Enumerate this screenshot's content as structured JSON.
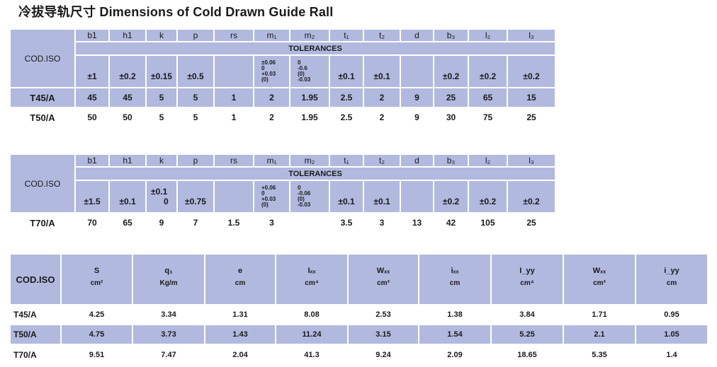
{
  "title": "冷拔导轨尺寸 Dimensions of Cold Drawn Guide Rall",
  "cod_label": "COD.ISO",
  "tolerances_label": "TOLERANCES",
  "columns": [
    "b1",
    "h1",
    "k",
    "p",
    "rs",
    "m₁",
    "m₂",
    "t₁",
    "t₂",
    "d",
    "b₃",
    "l₂",
    "l₃"
  ],
  "table1": {
    "tolerances": [
      "±1",
      "±0.2",
      "±0.15",
      "±0.5",
      "",
      [
        "±0.06",
        "0",
        "+0.03",
        "(0)"
      ],
      [
        "0",
        "-0.6",
        "(0)",
        "-0.03"
      ],
      "±0.1",
      "±0.1",
      "",
      "±0.2",
      "±0.2",
      "±0.2"
    ],
    "rows": [
      {
        "code": "T45/A",
        "values": [
          "45",
          "45",
          "5",
          "5",
          "1",
          "2",
          "1.95",
          "2.5",
          "2",
          "9",
          "25",
          "65",
          "15"
        ]
      },
      {
        "code": "T50/A",
        "values": [
          "50",
          "50",
          "5",
          "5",
          "1",
          "2",
          "1.95",
          "2.5",
          "2",
          "9",
          "30",
          "75",
          "25"
        ]
      }
    ]
  },
  "table2": {
    "tolerances": [
      "±1.5",
      "±0.1",
      [
        "±0.1",
        "0"
      ],
      "±0.75",
      "",
      [
        "+0.06",
        "0",
        "+0.03",
        "(0)"
      ],
      [
        "0",
        "-0.06",
        "(0)",
        "-0.03"
      ],
      "±0.1",
      "±0.1",
      "",
      "±0.2",
      "±0.2",
      "±0.2"
    ],
    "rows": [
      {
        "code": "T70/A",
        "values": [
          "70",
          "65",
          "9",
          "7",
          "1.5",
          "3",
          "",
          "3.5",
          "3",
          "13",
          "42",
          "105",
          "25"
        ]
      }
    ]
  },
  "table3": {
    "headers": [
      {
        "sym": "S",
        "unit": "cm²"
      },
      {
        "sym": "q₁",
        "unit": "Kg/m"
      },
      {
        "sym": "e",
        "unit": "cm"
      },
      {
        "sym": "Iₓₓ",
        "unit": "cm⁴"
      },
      {
        "sym": "Wₓₓ",
        "unit": "cm³"
      },
      {
        "sym": "iₓₓ",
        "unit": "cm"
      },
      {
        "sym": "I_yy",
        "unit": "cm⁴"
      },
      {
        "sym": "Wₓₓ",
        "unit": "cm³"
      },
      {
        "sym": "i_yy",
        "unit": "cm"
      }
    ],
    "rows": [
      {
        "code": "T45/A",
        "values": [
          "4.25",
          "3.34",
          "1.31",
          "8.08",
          "2.53",
          "1.38",
          "3.84",
          "1.71",
          "0.95"
        ]
      },
      {
        "code": "T50/A",
        "values": [
          "4.75",
          "3.73",
          "1.43",
          "11.24",
          "3.15",
          "1.54",
          "5.25",
          "2.1",
          "1.05"
        ]
      },
      {
        "code": "T70/A",
        "values": [
          "9.51",
          "7.47",
          "2.04",
          "41.3",
          "9.24",
          "2.09",
          "18.65",
          "5.35",
          "1.4"
        ]
      }
    ]
  }
}
